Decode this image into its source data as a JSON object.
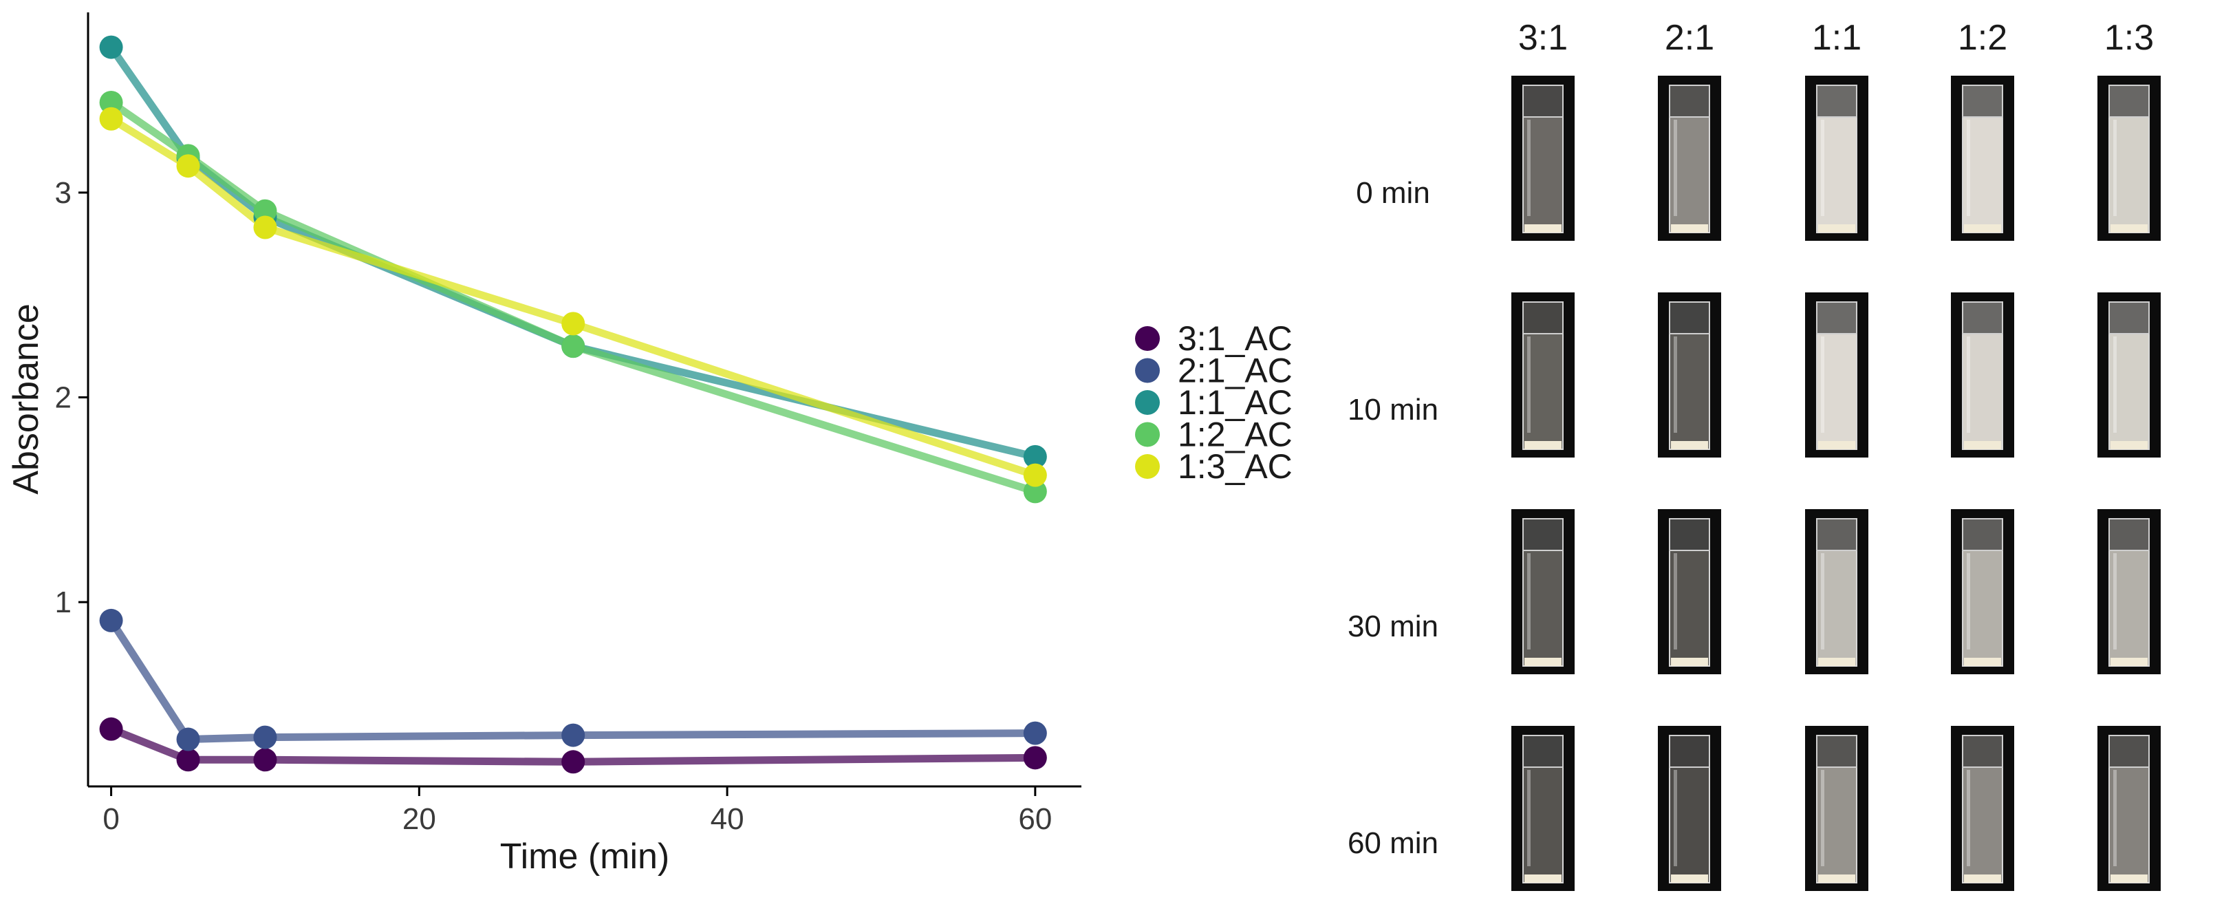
{
  "chart_data": {
    "type": "line",
    "title": "",
    "xlabel": "Time (min)",
    "ylabel": "Absorbance",
    "x": [
      0,
      5,
      10,
      30,
      60
    ],
    "xlim": [
      -1.5,
      63
    ],
    "ylim": [
      0.1,
      3.88
    ],
    "xticks": [
      0,
      20,
      40,
      60
    ],
    "yticks": [
      1,
      2,
      3
    ],
    "grid": false,
    "legend_position": "right",
    "series": [
      {
        "name": "3:1_AC",
        "color": "#440154",
        "values": [
          0.38,
          0.23,
          0.23,
          0.22,
          0.24
        ]
      },
      {
        "name": "2:1_AC",
        "color": "#3B528B",
        "values": [
          0.91,
          0.33,
          0.34,
          0.35,
          0.36
        ]
      },
      {
        "name": "1:1_AC",
        "color": "#21908C",
        "values": [
          3.71,
          3.17,
          2.88,
          2.25,
          1.71
        ]
      },
      {
        "name": "1:2_AC",
        "color": "#5DC863",
        "values": [
          3.44,
          3.18,
          2.91,
          2.25,
          1.54
        ]
      },
      {
        "name": "1:3_AC",
        "color": "#DDE318",
        "values": [
          3.36,
          3.13,
          2.83,
          2.36,
          1.62
        ]
      }
    ]
  },
  "photo_grid": {
    "columns": [
      "3:1",
      "2:1",
      "1:1",
      "1:2",
      "1:3"
    ],
    "rows": [
      "0 min",
      "10 min",
      "30 min",
      "60 min"
    ],
    "turbidity": [
      [
        0.35,
        0.55,
        0.95,
        0.95,
        0.9
      ],
      [
        0.3,
        0.25,
        0.95,
        0.92,
        0.9
      ],
      [
        0.25,
        0.2,
        0.8,
        0.75,
        0.75
      ],
      [
        0.2,
        0.15,
        0.6,
        0.55,
        0.5
      ]
    ]
  }
}
